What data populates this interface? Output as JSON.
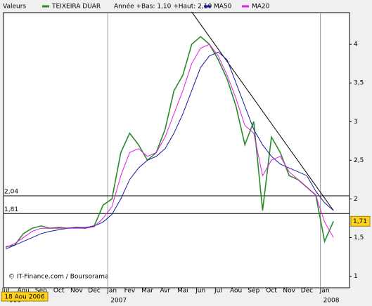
{
  "chart_data": {
    "type": "line",
    "legend_label": "Valeurs",
    "range_note": "Année +Bas: 1,10 +Haut: 2,10",
    "categories": [
      "Jul",
      null,
      "Aou",
      null,
      "Sep",
      null,
      "Oct",
      null,
      "Nov",
      null,
      "Dec",
      null,
      "Jan",
      null,
      "Fev",
      null,
      "Mar",
      null,
      "Avr",
      null,
      "Mai",
      null,
      "Jun",
      null,
      "Jul",
      null,
      "Aou",
      null,
      "Sep",
      null,
      "Oct",
      null,
      "Nov",
      null,
      "Dec",
      null,
      "Jan",
      null
    ],
    "year_labels": [
      "006",
      "2007",
      "2008"
    ],
    "series": [
      {
        "name": "TEIXEIRA DUAR",
        "color": "#2a8a2a",
        "values": [
          1.38,
          1.4,
          1.55,
          1.62,
          1.65,
          1.62,
          1.63,
          1.62,
          1.63,
          1.62,
          1.65,
          1.92,
          2.0,
          2.6,
          2.85,
          2.7,
          2.5,
          2.6,
          2.9,
          3.4,
          3.6,
          4.0,
          4.1,
          4.0,
          3.8,
          3.55,
          3.2,
          2.7,
          3.0,
          1.85,
          2.8,
          2.6,
          2.3,
          2.25,
          2.15,
          2.05,
          1.45,
          1.71
        ]
      },
      {
        "name": "MA50",
        "color": "#1a1aa0",
        "values": [
          1.35,
          1.4,
          1.45,
          1.5,
          1.55,
          1.58,
          1.6,
          1.62,
          1.63,
          1.63,
          1.65,
          1.7,
          1.8,
          2.0,
          2.25,
          2.4,
          2.5,
          2.55,
          2.65,
          2.85,
          3.1,
          3.4,
          3.7,
          3.85,
          3.9,
          3.8,
          3.5,
          3.2,
          2.9,
          2.7,
          2.55,
          2.45,
          2.4,
          2.35,
          2.3,
          2.1,
          1.95,
          1.85
        ]
      },
      {
        "name": "MA20",
        "color": "#e020e0",
        "values": [
          1.37,
          1.42,
          1.5,
          1.58,
          1.62,
          1.62,
          1.62,
          1.62,
          1.62,
          1.62,
          1.64,
          1.75,
          1.9,
          2.3,
          2.6,
          2.65,
          2.55,
          2.6,
          2.8,
          3.1,
          3.4,
          3.75,
          3.95,
          4.0,
          3.85,
          3.6,
          3.3,
          2.95,
          2.85,
          2.3,
          2.5,
          2.55,
          2.35,
          2.25,
          2.15,
          2.05,
          1.7,
          1.5
        ]
      }
    ],
    "levels": [
      {
        "value": 2.04,
        "label": "2,04"
      },
      {
        "value": 1.81,
        "label": "1,81"
      }
    ],
    "trend_line": {
      "x": [
        21,
        37
      ],
      "values": [
        4.42,
        1.85
      ]
    },
    "last_value": {
      "value": 1.71,
      "label": "1,71"
    },
    "start_date": "18 Aou 2006",
    "credit": "© IT-Finance.com / Boursorama",
    "ylim": [
      0.85,
      4.41
    ],
    "yticks": [
      1,
      {
        "value": 1.5,
        "label": "1,5"
      },
      2,
      {
        "value": 2.5,
        "label": "2,5"
      },
      3,
      {
        "value": 3.5,
        "label": "3,5"
      },
      4
    ],
    "grid": true
  }
}
